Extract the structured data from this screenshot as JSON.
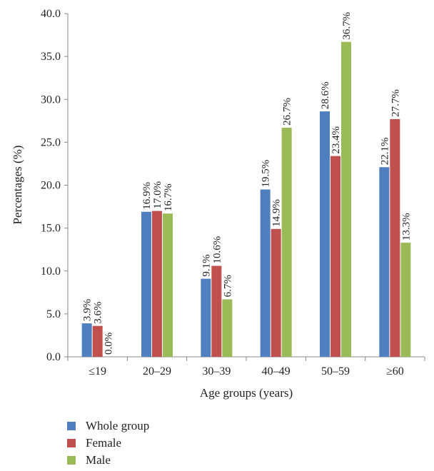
{
  "chart_data": {
    "type": "bar",
    "categories": [
      "≤19",
      "20–29",
      "30–39",
      "40–49",
      "50–59",
      "≥60"
    ],
    "series": [
      {
        "name": "Whole group",
        "color": "#4f7fbf",
        "values": [
          3.9,
          16.9,
          9.1,
          19.5,
          28.6,
          22.1
        ],
        "labels": [
          "3.9%",
          "16.9%",
          "9.1%",
          "19.5%",
          "28.6%",
          "22.1%"
        ]
      },
      {
        "name": "Female",
        "color": "#c0504d",
        "values": [
          3.6,
          17.0,
          10.6,
          14.9,
          23.4,
          27.7
        ],
        "labels": [
          "3.6%",
          "17.0%",
          "10.6%",
          "14.9%",
          "23.4%",
          "27.7%"
        ]
      },
      {
        "name": "Male",
        "color": "#9bbb59",
        "values": [
          0.0,
          16.7,
          6.7,
          26.7,
          36.7,
          13.3
        ],
        "labels": [
          "0.0%",
          "16.7%",
          "6.7%",
          "26.7%",
          "36.7%",
          "13.3%"
        ]
      }
    ],
    "xlabel": "Age groups (years)",
    "ylabel": "Percentages (%)",
    "ylim": [
      0,
      40
    ],
    "yticks": [
      "0.0",
      "5.0",
      "10.0",
      "15.0",
      "20.0",
      "25.0",
      "30.0",
      "35.0",
      "40.0"
    ],
    "grid": false,
    "legend_position": "bottom-left"
  }
}
